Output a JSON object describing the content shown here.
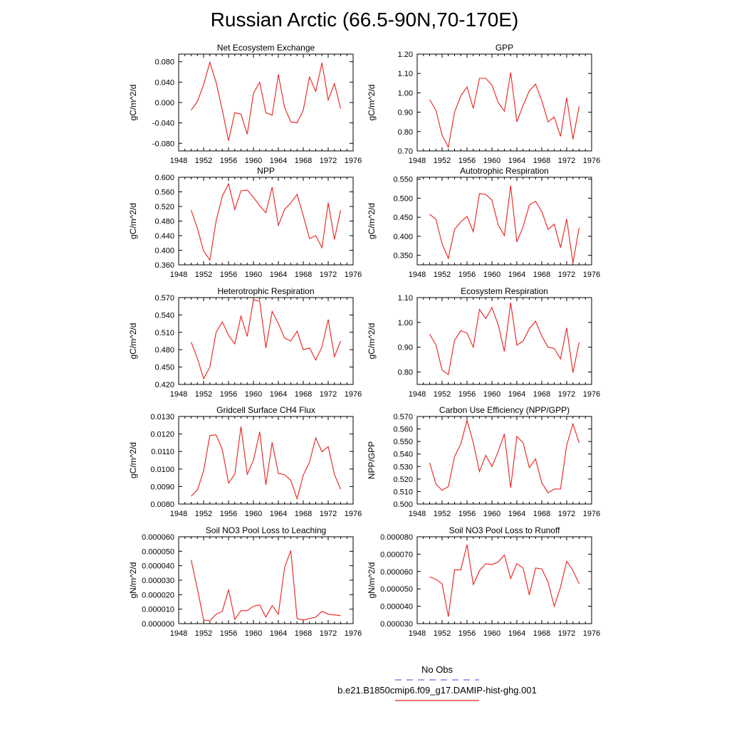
{
  "title": "Russian Arctic (66.5-90N,70-170E)",
  "colors": {
    "model": "#e8201c",
    "obs": "#6a6adf",
    "axis": "#000000"
  },
  "legend": {
    "obs_label": "No Obs",
    "model_label": "b.e21.B1850cmip6.f09_g17.DAMIP-hist-ghg.001"
  },
  "chart_data": [
    {
      "type": "line",
      "title": "Net Ecosystem Exchange",
      "ylabel": "gC/m^2/d",
      "xlim": [
        1948,
        1976
      ],
      "xticks": [
        1948,
        1952,
        1956,
        1960,
        1964,
        1968,
        1972,
        1976
      ],
      "ylim": [
        -0.095,
        0.095
      ],
      "yticks": [
        -0.08,
        -0.04,
        0.0,
        0.04,
        0.08
      ],
      "ytick_labels": [
        "-0.080",
        "-0.040",
        "0.000",
        "0.040",
        "0.080"
      ],
      "x": [
        1950,
        1951,
        1952,
        1953,
        1954,
        1955,
        1956,
        1957,
        1958,
        1959,
        1960,
        1961,
        1962,
        1963,
        1964,
        1965,
        1966,
        1967,
        1968,
        1969,
        1970,
        1971,
        1972,
        1973,
        1974
      ],
      "series": [
        {
          "values": [
            -0.015,
            0.002,
            0.035,
            0.079,
            0.04,
            -0.015,
            -0.075,
            -0.02,
            -0.023,
            -0.062,
            0.018,
            0.04,
            -0.02,
            -0.025,
            0.055,
            -0.01,
            -0.038,
            -0.04,
            -0.015,
            0.05,
            0.022,
            0.078,
            0.005,
            0.037,
            -0.012
          ]
        }
      ]
    },
    {
      "type": "line",
      "title": "GPP",
      "ylabel": "gC/m^2/d",
      "xlim": [
        1948,
        1976
      ],
      "xticks": [
        1948,
        1952,
        1956,
        1960,
        1964,
        1968,
        1972,
        1976
      ],
      "ylim": [
        0.7,
        1.2
      ],
      "yticks": [
        0.7,
        0.8,
        0.9,
        1.0,
        1.1,
        1.2
      ],
      "ytick_labels": [
        "0.70",
        "0.80",
        "0.90",
        "1.00",
        "1.10",
        "1.20"
      ],
      "x": [
        1950,
        1951,
        1952,
        1953,
        1954,
        1955,
        1956,
        1957,
        1958,
        1959,
        1960,
        1961,
        1962,
        1963,
        1964,
        1965,
        1966,
        1967,
        1968,
        1969,
        1970,
        1971,
        1972,
        1973,
        1974
      ],
      "series": [
        {
          "values": [
            0.965,
            0.91,
            0.78,
            0.72,
            0.9,
            0.985,
            1.03,
            0.92,
            1.075,
            1.075,
            1.04,
            0.95,
            0.905,
            1.105,
            0.85,
            0.935,
            1.01,
            1.045,
            0.96,
            0.85,
            0.875,
            0.775,
            0.975,
            0.76,
            0.93
          ]
        }
      ]
    },
    {
      "type": "line",
      "title": "NPP",
      "ylabel": "gC/m^2/d",
      "xlim": [
        1948,
        1976
      ],
      "xticks": [
        1948,
        1952,
        1956,
        1960,
        1964,
        1968,
        1972,
        1976
      ],
      "ylim": [
        0.36,
        0.6
      ],
      "yticks": [
        0.36,
        0.4,
        0.44,
        0.48,
        0.52,
        0.56,
        0.6
      ],
      "ytick_labels": [
        "0.360",
        "0.400",
        "0.440",
        "0.480",
        "0.520",
        "0.560",
        "0.600"
      ],
      "x": [
        1950,
        1951,
        1952,
        1953,
        1954,
        1955,
        1956,
        1957,
        1958,
        1959,
        1960,
        1961,
        1962,
        1963,
        1964,
        1965,
        1966,
        1967,
        1968,
        1969,
        1970,
        1971,
        1972,
        1973,
        1974
      ],
      "series": [
        {
          "values": [
            0.51,
            0.46,
            0.398,
            0.373,
            0.48,
            0.548,
            0.582,
            0.512,
            0.563,
            0.565,
            0.545,
            0.522,
            0.503,
            0.573,
            0.468,
            0.512,
            0.53,
            0.553,
            0.495,
            0.432,
            0.44,
            0.407,
            0.53,
            0.43,
            0.51
          ]
        }
      ]
    },
    {
      "type": "line",
      "title": "Autotrophic Respiration",
      "ylabel": "gC/m^2/d",
      "xlim": [
        1948,
        1976
      ],
      "xticks": [
        1948,
        1952,
        1956,
        1960,
        1964,
        1968,
        1972,
        1976
      ],
      "ylim": [
        0.325,
        0.555
      ],
      "yticks": [
        0.35,
        0.4,
        0.45,
        0.5,
        0.55
      ],
      "ytick_labels": [
        "0.350",
        "0.400",
        "0.450",
        "0.500",
        "0.550"
      ],
      "x": [
        1950,
        1951,
        1952,
        1953,
        1954,
        1955,
        1956,
        1957,
        1958,
        1959,
        1960,
        1961,
        1962,
        1963,
        1964,
        1965,
        1966,
        1967,
        1968,
        1969,
        1970,
        1971,
        1972,
        1973,
        1974
      ],
      "series": [
        {
          "values": [
            0.458,
            0.445,
            0.38,
            0.342,
            0.418,
            0.438,
            0.452,
            0.412,
            0.512,
            0.51,
            0.495,
            0.43,
            0.402,
            0.533,
            0.385,
            0.425,
            0.482,
            0.492,
            0.465,
            0.418,
            0.432,
            0.37,
            0.445,
            0.33,
            0.422
          ]
        }
      ]
    },
    {
      "type": "line",
      "title": "Heterotrophic Respiration",
      "ylabel": "gC/m^2/d",
      "xlim": [
        1948,
        1976
      ],
      "xticks": [
        1948,
        1952,
        1956,
        1960,
        1964,
        1968,
        1972,
        1976
      ],
      "ylim": [
        0.42,
        0.57
      ],
      "yticks": [
        0.42,
        0.45,
        0.48,
        0.51,
        0.54,
        0.57
      ],
      "ytick_labels": [
        "0.420",
        "0.450",
        "0.480",
        "0.510",
        "0.540",
        "0.570"
      ],
      "x": [
        1950,
        1951,
        1952,
        1953,
        1954,
        1955,
        1956,
        1957,
        1958,
        1959,
        1960,
        1961,
        1962,
        1963,
        1964,
        1965,
        1966,
        1967,
        1968,
        1969,
        1970,
        1971,
        1972,
        1973,
        1974
      ],
      "series": [
        {
          "values": [
            0.493,
            0.465,
            0.43,
            0.45,
            0.51,
            0.528,
            0.505,
            0.49,
            0.538,
            0.503,
            0.566,
            0.564,
            0.483,
            0.546,
            0.525,
            0.5,
            0.495,
            0.512,
            0.48,
            0.483,
            0.462,
            0.485,
            0.532,
            0.468,
            0.495
          ]
        }
      ]
    },
    {
      "type": "line",
      "title": "Ecosystem Respiration",
      "ylabel": "gC/m^2/d",
      "xlim": [
        1948,
        1976
      ],
      "xticks": [
        1948,
        1952,
        1956,
        1960,
        1964,
        1968,
        1972,
        1976
      ],
      "ylim": [
        0.75,
        1.1
      ],
      "yticks": [
        0.8,
        0.9,
        1.0,
        1.1
      ],
      "ytick_labels": [
        "0.80",
        "0.90",
        "1.00",
        "1.10"
      ],
      "x": [
        1950,
        1951,
        1952,
        1953,
        1954,
        1955,
        1956,
        1957,
        1958,
        1959,
        1960,
        1961,
        1962,
        1963,
        1964,
        1965,
        1966,
        1967,
        1968,
        1969,
        1970,
        1971,
        1972,
        1973,
        1974
      ],
      "series": [
        {
          "values": [
            0.952,
            0.91,
            0.808,
            0.79,
            0.928,
            0.967,
            0.957,
            0.9,
            1.052,
            1.015,
            1.06,
            0.99,
            0.883,
            1.08,
            0.908,
            0.925,
            0.975,
            1.005,
            0.945,
            0.9,
            0.895,
            0.853,
            0.978,
            0.798,
            0.92
          ]
        }
      ]
    },
    {
      "type": "line",
      "title": "Gridcell Surface CH4 Flux",
      "ylabel": "gC/m^2/d",
      "xlim": [
        1948,
        1976
      ],
      "xticks": [
        1948,
        1952,
        1956,
        1960,
        1964,
        1968,
        1972,
        1976
      ],
      "ylim": [
        0.008,
        0.013
      ],
      "yticks": [
        0.008,
        0.009,
        0.01,
        0.011,
        0.012,
        0.013
      ],
      "ytick_labels": [
        "0.0080",
        "0.0090",
        "0.0100",
        "0.0110",
        "0.0120",
        "0.0130"
      ],
      "x": [
        1950,
        1951,
        1952,
        1953,
        1954,
        1955,
        1956,
        1957,
        1958,
        1959,
        1960,
        1961,
        1962,
        1963,
        1964,
        1965,
        1966,
        1967,
        1968,
        1969,
        1970,
        1971,
        1972,
        1973,
        1974
      ],
      "series": [
        {
          "values": [
            0.00845,
            0.0088,
            0.0099,
            0.01192,
            0.01195,
            0.0111,
            0.0092,
            0.0097,
            0.01242,
            0.0097,
            0.0105,
            0.01212,
            0.0091,
            0.01152,
            0.00975,
            0.00968,
            0.00935,
            0.0083,
            0.00965,
            0.0104,
            0.01178,
            0.01098,
            0.01128,
            0.00968,
            0.00885
          ]
        }
      ]
    },
    {
      "type": "line",
      "title": "Carbon Use Efficiency (NPP/GPP)",
      "ylabel": "NPP/GPP",
      "xlim": [
        1948,
        1976
      ],
      "xticks": [
        1948,
        1952,
        1956,
        1960,
        1964,
        1968,
        1972,
        1976
      ],
      "ylim": [
        0.5,
        0.57
      ],
      "yticks": [
        0.5,
        0.51,
        0.52,
        0.53,
        0.54,
        0.55,
        0.56,
        0.57
      ],
      "ytick_labels": [
        "0.500",
        "0.510",
        "0.520",
        "0.530",
        "0.540",
        "0.550",
        "0.560",
        "0.570"
      ],
      "x": [
        1950,
        1951,
        1952,
        1953,
        1954,
        1955,
        1956,
        1957,
        1958,
        1959,
        1960,
        1961,
        1962,
        1963,
        1964,
        1965,
        1966,
        1967,
        1968,
        1969,
        1970,
        1971,
        1972,
        1973,
        1974
      ],
      "series": [
        {
          "values": [
            0.533,
            0.516,
            0.511,
            0.514,
            0.538,
            0.548,
            0.567,
            0.549,
            0.526,
            0.539,
            0.53,
            0.542,
            0.556,
            0.513,
            0.554,
            0.549,
            0.529,
            0.536,
            0.517,
            0.509,
            0.512,
            0.512,
            0.547,
            0.564,
            0.549
          ]
        }
      ]
    },
    {
      "type": "line",
      "title": "Soil NO3 Pool Loss to Leaching",
      "ylabel": "gN/m^2/d",
      "xlim": [
        1948,
        1976
      ],
      "xticks": [
        1948,
        1952,
        1956,
        1960,
        1964,
        1968,
        1972,
        1976
      ],
      "ylim": [
        0.0,
        6e-05
      ],
      "yticks": [
        0.0,
        1e-05,
        2e-05,
        3e-05,
        4e-05,
        5e-05,
        6e-05
      ],
      "ytick_labels": [
        "0.000000",
        "0.000010",
        "0.000020",
        "0.000030",
        "0.000040",
        "0.000050",
        "0.000060"
      ],
      "x": [
        1950,
        1951,
        1952,
        1953,
        1954,
        1955,
        1956,
        1957,
        1958,
        1959,
        1960,
        1961,
        1962,
        1963,
        1964,
        1965,
        1966,
        1967,
        1968,
        1969,
        1970,
        1971,
        1972,
        1973,
        1974
      ],
      "series": [
        {
          "values": [
            4.4e-05,
            2.4e-05,
            2.5e-06,
            2e-06,
            6.5e-06,
            8.5e-06,
            2.35e-05,
            3e-06,
            9e-06,
            9e-06,
            1.2e-05,
            1.3e-05,
            4.5e-06,
            1.25e-05,
            6.5e-06,
            3.9e-05,
            5.05e-05,
            3.5e-06,
            2.5e-06,
            3.5e-06,
            4.5e-06,
            8.5e-06,
            6.5e-06,
            6e-06,
            5.5e-06
          ]
        }
      ]
    },
    {
      "type": "line",
      "title": "Soil NO3 Pool Loss to Runoff",
      "ylabel": "gN/m^2/d",
      "xlim": [
        1948,
        1976
      ],
      "xticks": [
        1948,
        1952,
        1956,
        1960,
        1964,
        1968,
        1972,
        1976
      ],
      "ylim": [
        3e-05,
        8e-05
      ],
      "yticks": [
        3e-05,
        4e-05,
        5e-05,
        6e-05,
        7e-05,
        8e-05
      ],
      "ytick_labels": [
        "0.000030",
        "0.000040",
        "0.000050",
        "0.000060",
        "0.000070",
        "0.000080"
      ],
      "x": [
        1950,
        1951,
        1952,
        1953,
        1954,
        1955,
        1956,
        1957,
        1958,
        1959,
        1960,
        1961,
        1962,
        1963,
        1964,
        1965,
        1966,
        1967,
        1968,
        1969,
        1970,
        1971,
        1972,
        1973,
        1974
      ],
      "series": [
        {
          "values": [
            5.7e-05,
            5.55e-05,
            5.3e-05,
            3.4e-05,
            6.1e-05,
            6.1e-05,
            7.55e-05,
            5.25e-05,
            6.05e-05,
            6.45e-05,
            6.4e-05,
            6.55e-05,
            6.95e-05,
            5.6e-05,
            6.45e-05,
            6.2e-05,
            4.65e-05,
            6.2e-05,
            6.15e-05,
            5.4e-05,
            4e-05,
            5.1e-05,
            6.6e-05,
            6.05e-05,
            5.3e-05
          ]
        }
      ]
    }
  ]
}
